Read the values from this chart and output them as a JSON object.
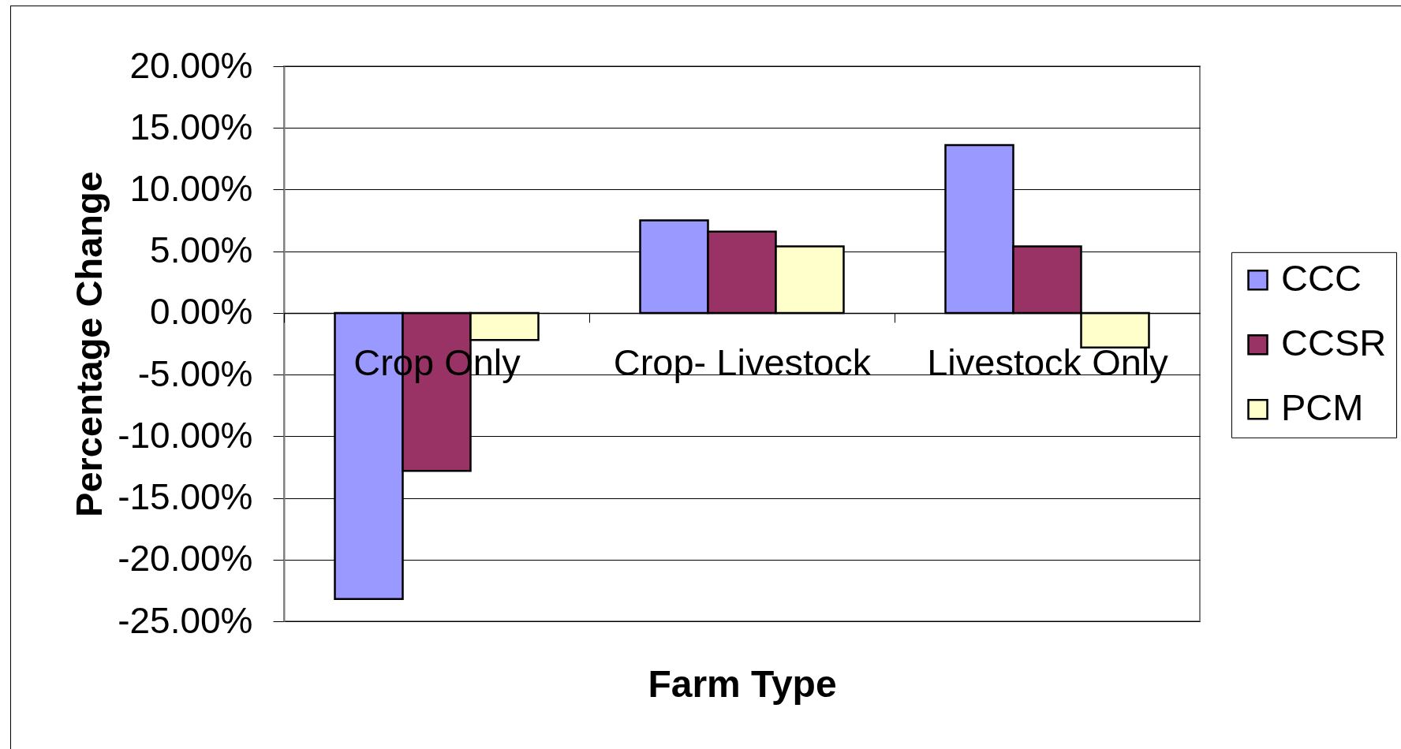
{
  "chart_data": {
    "type": "bar",
    "xlabel": "Farm Type",
    "ylabel": "Percentage Change",
    "categories": [
      "Crop Only",
      "Crop- Livestock",
      "Livestock Only"
    ],
    "series": [
      {
        "name": "CCC",
        "color": "#9999ff",
        "values": [
          -23.2,
          7.5,
          13.6
        ]
      },
      {
        "name": "CCSR",
        "color": "#993366",
        "values": [
          -12.8,
          6.6,
          5.4
        ]
      },
      {
        "name": "PCM",
        "color": "#ffffcc",
        "values": [
          -2.2,
          5.4,
          -2.8
        ]
      }
    ],
    "ylim": [
      -25,
      20
    ],
    "yticks": [
      {
        "value": -25,
        "label": "-25.00%"
      },
      {
        "value": -20,
        "label": "-20.00%"
      },
      {
        "value": -15,
        "label": "-15.00%"
      },
      {
        "value": -10,
        "label": "-10.00%"
      },
      {
        "value": -5,
        "label": "-5.00%"
      },
      {
        "value": 0,
        "label": "0.00%"
      },
      {
        "value": 5,
        "label": "5.00%"
      },
      {
        "value": 10,
        "label": "10.00%"
      },
      {
        "value": 15,
        "label": "15.00%"
      },
      {
        "value": 20,
        "label": "20.00%"
      }
    ],
    "grid": "y",
    "legend": "right"
  }
}
